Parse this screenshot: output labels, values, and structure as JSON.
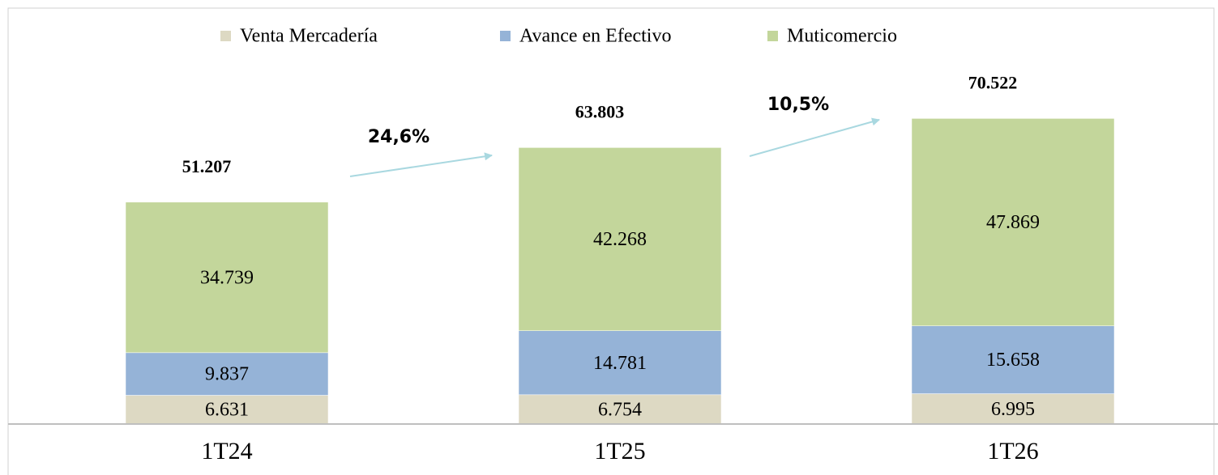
{
  "chart_data": {
    "type": "stacked_bar",
    "categories": [
      "1T24",
      "1T25",
      "1T26"
    ],
    "series": [
      {
        "name": "Venta Mercadería",
        "color": "#ddd9c3",
        "values": [
          6631,
          6754,
          6995
        ],
        "value_labels": [
          "6.631",
          "6.754",
          "6.995"
        ]
      },
      {
        "name": "Avance en Efectivo",
        "color": "#95b3d7",
        "values": [
          9837,
          14781,
          15658
        ],
        "value_labels": [
          "9.837",
          "14.781",
          "15.658"
        ]
      },
      {
        "name": "Muticomercio",
        "color": "#c3d69b",
        "values": [
          34739,
          42268,
          47869
        ],
        "value_labels": [
          "34.739",
          "42.268",
          "47.869"
        ]
      }
    ],
    "totals": {
      "values": [
        51207,
        63803,
        70522
      ],
      "value_labels": [
        "51.207",
        "63.803",
        "70.522"
      ]
    },
    "annotations": [
      "24,6%",
      "10,5%"
    ],
    "ylim": [
      0,
      96000
    ],
    "legend": "top"
  }
}
